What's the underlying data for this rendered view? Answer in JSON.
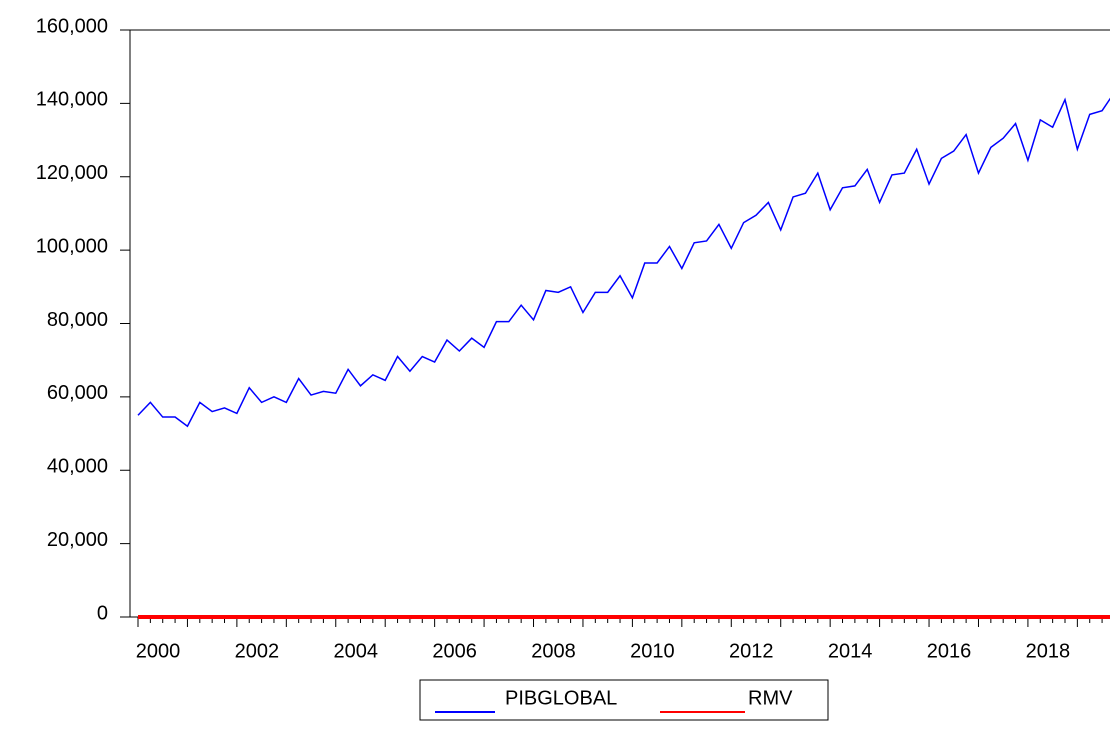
{
  "chart_data": {
    "type": "line",
    "categories": [
      "2000",
      null,
      null,
      null,
      null,
      null,
      null,
      null,
      "2002",
      null,
      null,
      null,
      null,
      null,
      null,
      null,
      "2004",
      null,
      null,
      null,
      null,
      null,
      null,
      null,
      "2006",
      null,
      null,
      null,
      null,
      null,
      null,
      null,
      "2008",
      null,
      null,
      null,
      null,
      null,
      null,
      null,
      "2010",
      null,
      null,
      null,
      null,
      null,
      null,
      null,
      "2012",
      null,
      null,
      null,
      null,
      null,
      null,
      null,
      "2014",
      null,
      null,
      null,
      null,
      null,
      null,
      null,
      "2016",
      null,
      null,
      null,
      null,
      null,
      null,
      null,
      "2018",
      null,
      null,
      null,
      null,
      null,
      null,
      null
    ],
    "series": [
      {
        "name": "PIBGLOBAL",
        "color": "#0000ff",
        "values": [
          55000,
          58500,
          54500,
          54500,
          52000,
          58500,
          56000,
          57000,
          55500,
          62500,
          58500,
          60000,
          58500,
          65000,
          60500,
          61500,
          61000,
          67500,
          63000,
          66000,
          64500,
          71000,
          67000,
          71000,
          69500,
          75500,
          72500,
          76000,
          73500,
          80500,
          80500,
          85000,
          81000,
          89000,
          88500,
          90000,
          83000,
          88500,
          88500,
          93000,
          87000,
          96500,
          96500,
          101000,
          95000,
          102000,
          102500,
          107000,
          100500,
          107500,
          109500,
          113000,
          105500,
          114500,
          115500,
          121000,
          111000,
          117000,
          117500,
          122000,
          113000,
          120500,
          121000,
          127500,
          118000,
          125000,
          127000,
          131500,
          121000,
          128000,
          130500,
          134500,
          124500,
          135500,
          133500,
          141000,
          127500,
          137000,
          138000,
          143000
        ]
      },
      {
        "name": "RMV",
        "color": "#ff0000",
        "values": [
          5,
          5,
          5,
          5,
          5,
          5,
          5,
          5,
          5,
          5,
          5,
          5,
          5,
          5,
          5,
          5,
          5,
          5,
          5,
          5,
          5,
          5,
          5,
          5,
          5,
          5,
          5,
          5,
          5,
          5,
          5,
          5,
          5,
          5,
          5,
          5,
          5,
          5,
          5,
          5,
          5,
          5,
          5,
          5,
          5,
          5,
          5,
          5,
          5,
          5,
          5,
          5,
          5,
          5,
          5,
          5,
          5,
          5,
          5,
          5,
          5,
          5,
          5,
          5,
          5,
          5,
          5,
          5,
          5,
          5,
          5,
          5,
          5,
          5,
          5,
          5,
          5,
          5,
          5,
          5
        ]
      }
    ],
    "ylim": [
      0,
      160000
    ],
    "yticks": [
      0,
      {
        "value": 20000,
        "label": "20,000"
      },
      {
        "value": 40000,
        "label": "40,000"
      },
      {
        "value": 60000,
        "label": "60,000"
      },
      {
        "value": 80000,
        "label": "80,000"
      },
      {
        "value": 100000,
        "label": "100,000"
      },
      {
        "value": 120000,
        "label": "120,000"
      },
      {
        "value": 140000,
        "label": "140,000"
      },
      {
        "value": 160000,
        "label": "160,000"
      }
    ],
    "grid": false
  }
}
